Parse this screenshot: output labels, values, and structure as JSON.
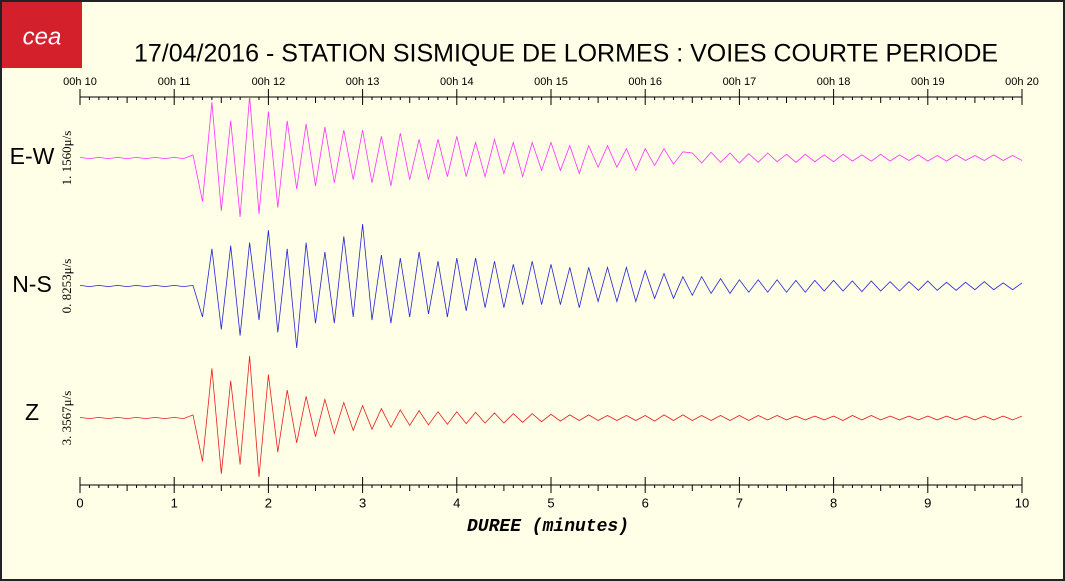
{
  "chart_data": {
    "type": "line",
    "logo": "cea",
    "title": "17/04/2016  -  STATION SISMIQUE DE LORMES : VOIES COURTE PERIODE",
    "xlabel": "DUREE (minutes)",
    "xlim": [
      0,
      10
    ],
    "xticks": [
      0,
      1,
      2,
      3,
      4,
      5,
      6,
      7,
      8,
      9,
      10
    ],
    "top_xticks": [
      {
        "value": 0,
        "label": "00h 10"
      },
      {
        "value": 1,
        "label": "00h 11"
      },
      {
        "value": 2,
        "label": "00h 12"
      },
      {
        "value": 3,
        "label": "00h 13"
      },
      {
        "value": 4,
        "label": "00h 14"
      },
      {
        "value": 5,
        "label": "00h 15"
      },
      {
        "value": 6,
        "label": "00h 16"
      },
      {
        "value": 7,
        "label": "00h 17"
      },
      {
        "value": 8,
        "label": "00h 18"
      },
      {
        "value": 9,
        "label": "00h 19"
      },
      {
        "value": 10,
        "label": "00h 20"
      }
    ],
    "x": [
      0,
      0.1,
      0.2,
      0.3,
      0.4,
      0.5,
      0.6,
      0.7,
      0.8,
      0.9,
      1,
      1.1,
      1.2,
      1.3,
      1.4,
      1.5,
      1.6,
      1.7,
      1.8,
      1.9,
      2,
      2.1,
      2.2,
      2.3,
      2.4,
      2.5,
      2.6,
      2.7,
      2.8,
      2.9,
      3,
      3.1,
      3.2,
      3.3,
      3.4,
      3.5,
      3.6,
      3.7,
      3.8,
      3.9,
      4,
      4.1,
      4.2,
      4.3,
      4.4,
      4.5,
      4.6,
      4.7,
      4.8,
      4.9,
      5,
      5.1,
      5.2,
      5.3,
      5.4,
      5.5,
      5.6,
      5.7,
      5.8,
      5.9,
      6,
      6.1,
      6.2,
      6.3,
      6.4,
      6.5,
      6.6,
      6.7,
      6.8,
      6.9,
      7,
      7.1,
      7.2,
      7.3,
      7.4,
      7.5,
      7.6,
      7.7,
      7.8,
      7.9,
      8,
      8.1,
      8.2,
      8.3,
      8.4,
      8.5,
      8.6,
      8.7,
      8.8,
      8.9,
      9,
      9.1,
      9.2,
      9.3,
      9.4,
      9.5,
      9.6,
      9.7,
      9.8,
      9.9,
      10
    ],
    "series": [
      {
        "name": "E-W",
        "color": "#ff33ff",
        "amplitude_label": "1. 1560μ/s",
        "ylim": [
          -1,
          1
        ],
        "values": [
          0.01,
          -0.01,
          0.01,
          -0.01,
          0.01,
          -0.01,
          0.01,
          -0.01,
          0.01,
          -0.01,
          0.01,
          -0.01,
          0.05,
          -0.7,
          0.9,
          -0.85,
          0.6,
          -0.95,
          1.0,
          -0.9,
          0.75,
          -0.8,
          0.6,
          -0.5,
          0.55,
          -0.45,
          0.5,
          -0.4,
          0.45,
          -0.35,
          0.45,
          -0.4,
          0.35,
          -0.45,
          0.4,
          -0.35,
          0.3,
          -0.35,
          0.3,
          -0.3,
          0.35,
          -0.3,
          0.25,
          -0.3,
          0.3,
          -0.25,
          0.25,
          -0.3,
          0.25,
          -0.2,
          0.25,
          -0.2,
          0.2,
          -0.25,
          0.2,
          -0.15,
          0.2,
          -0.15,
          0.15,
          -0.2,
          0.15,
          -0.12,
          0.15,
          -0.1,
          0.1,
          0.08,
          -0.08,
          0.09,
          -0.07,
          0.08,
          -0.08,
          0.07,
          -0.07,
          0.08,
          -0.06,
          0.06,
          -0.07,
          0.06,
          -0.06,
          0.05,
          -0.06,
          0.06,
          -0.05,
          0.05,
          -0.05,
          0.06,
          -0.05,
          0.05,
          -0.04,
          0.05,
          -0.05,
          0.04,
          -0.05,
          0.05,
          -0.04,
          0.04,
          -0.04,
          0.05,
          -0.04,
          0.04,
          -0.04
        ]
      },
      {
        "name": "N-S",
        "color": "#2626d4",
        "amplitude_label": "0. 8253μ/s",
        "ylim": [
          -1,
          1
        ],
        "values": [
          0.01,
          -0.01,
          0.01,
          -0.01,
          0.01,
          -0.01,
          0.01,
          -0.01,
          0.01,
          -0.01,
          0.01,
          -0.01,
          0.01,
          -0.5,
          0.6,
          -0.7,
          0.65,
          -0.8,
          0.7,
          -0.55,
          0.9,
          -0.75,
          0.6,
          -1.0,
          0.7,
          -0.6,
          0.55,
          -0.6,
          0.8,
          -0.5,
          1.0,
          -0.55,
          0.5,
          -0.6,
          0.45,
          -0.5,
          0.55,
          -0.45,
          0.4,
          -0.5,
          0.45,
          -0.4,
          0.45,
          -0.35,
          0.4,
          -0.35,
          0.35,
          -0.3,
          0.4,
          -0.3,
          0.35,
          -0.3,
          0.3,
          -0.35,
          0.3,
          -0.25,
          0.3,
          -0.25,
          0.3,
          -0.25,
          0.25,
          -0.2,
          0.2,
          -0.2,
          0.15,
          -0.15,
          0.15,
          -0.12,
          0.12,
          -0.12,
          0.1,
          -0.1,
          0.1,
          -0.1,
          0.1,
          -0.1,
          0.09,
          -0.1,
          0.09,
          -0.08,
          0.09,
          -0.08,
          0.08,
          -0.09,
          0.08,
          -0.08,
          0.07,
          -0.08,
          0.07,
          -0.07,
          0.08,
          -0.07,
          0.06,
          -0.07,
          0.06,
          -0.06,
          0.07,
          -0.06,
          0.05,
          -0.06,
          0.05
        ]
      },
      {
        "name": "Z",
        "color": "#e82020",
        "amplitude_label": "3. 3567μ/s",
        "ylim": [
          -1,
          1
        ],
        "values": [
          0.01,
          -0.01,
          0.01,
          -0.01,
          0.01,
          -0.01,
          0.01,
          -0.01,
          0.01,
          -0.01,
          0.01,
          -0.01,
          0.05,
          -0.7,
          0.8,
          -0.9,
          0.6,
          -0.75,
          1.0,
          -0.95,
          0.7,
          -0.55,
          0.45,
          -0.4,
          0.35,
          -0.3,
          0.3,
          -0.25,
          0.25,
          -0.2,
          0.2,
          -0.18,
          0.15,
          -0.15,
          0.13,
          -0.12,
          0.12,
          -0.11,
          0.1,
          -0.1,
          0.1,
          -0.09,
          0.09,
          -0.08,
          0.08,
          -0.08,
          0.07,
          -0.07,
          0.07,
          -0.06,
          0.06,
          -0.05,
          0.05,
          -0.04,
          0.05,
          -0.04,
          0.04,
          -0.04,
          0.04,
          -0.04,
          0.04,
          -0.05,
          0.05,
          -0.04,
          0.05,
          -0.04,
          0.04,
          -0.04,
          0.04,
          -0.04,
          0.04,
          -0.04,
          0.04,
          -0.03,
          0.04,
          -0.03,
          0.03,
          -0.03,
          0.03,
          -0.03,
          0.03,
          -0.04,
          0.04,
          -0.03,
          0.04,
          -0.03,
          0.03,
          -0.03,
          0.03,
          -0.03,
          0.03,
          -0.03,
          0.03,
          -0.03,
          0.03,
          -0.03,
          0.03,
          -0.03,
          0.03,
          -0.03,
          0.03
        ]
      }
    ]
  }
}
